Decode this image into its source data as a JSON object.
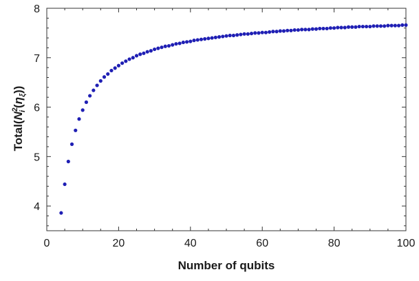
{
  "chart_data": {
    "type": "scatter",
    "title": "",
    "xlabel": "Number of qubits",
    "ylabel": {
      "prefix": "Total",
      "open": "(",
      "symbol": "N",
      "superscript": "2",
      "subscript": "i",
      "inner_open": "(",
      "eta": "η",
      "eta_subscript": "ξ",
      "inner_close": ")",
      "close": ")"
    },
    "xlim": [
      0,
      100
    ],
    "ylim": [
      3.5,
      8.0
    ],
    "xticks": [
      0,
      20,
      40,
      60,
      80,
      100
    ],
    "xtick_labels": [
      "0",
      "20",
      "40",
      "60",
      "80",
      "100"
    ],
    "yticks": [
      4,
      5,
      6,
      7,
      8
    ],
    "ytick_labels": [
      "4",
      "5",
      "6",
      "7",
      "8"
    ],
    "grid": false,
    "marker_color": "#1f1fb4",
    "series": [
      {
        "x": [
          4,
          5,
          6,
          7,
          8,
          9,
          10,
          11,
          12,
          13,
          14,
          15,
          16,
          17,
          18,
          19,
          20,
          21,
          22,
          23,
          24,
          25,
          26,
          27,
          28,
          29,
          30,
          31,
          32,
          33,
          34,
          35,
          36,
          37,
          38,
          39,
          40,
          41,
          42,
          43,
          44,
          45,
          46,
          47,
          48,
          49,
          50,
          51,
          52,
          53,
          54,
          55,
          56,
          57,
          58,
          59,
          60,
          61,
          62,
          63,
          64,
          65,
          66,
          67,
          68,
          69,
          70,
          71,
          72,
          73,
          74,
          75,
          76,
          77,
          78,
          79,
          80,
          81,
          82,
          83,
          84,
          85,
          86,
          87,
          88,
          89,
          90,
          91,
          92,
          93,
          94,
          95,
          96,
          97,
          98,
          99,
          100
        ],
        "y": [
          3.86,
          4.44,
          4.9,
          5.25,
          5.53,
          5.76,
          5.94,
          6.1,
          6.23,
          6.34,
          6.44,
          6.53,
          6.61,
          6.67,
          6.74,
          6.79,
          6.84,
          6.89,
          6.93,
          6.97,
          7.0,
          7.04,
          7.07,
          7.09,
          7.12,
          7.14,
          7.17,
          7.19,
          7.21,
          7.23,
          7.24,
          7.26,
          7.28,
          7.29,
          7.31,
          7.32,
          7.33,
          7.35,
          7.36,
          7.37,
          7.38,
          7.39,
          7.4,
          7.41,
          7.42,
          7.43,
          7.44,
          7.45,
          7.45,
          7.46,
          7.47,
          7.48,
          7.48,
          7.49,
          7.5,
          7.5,
          7.51,
          7.51,
          7.52,
          7.53,
          7.53,
          7.54,
          7.54,
          7.55,
          7.55,
          7.56,
          7.56,
          7.57,
          7.57,
          7.57,
          7.58,
          7.58,
          7.59,
          7.59,
          7.59,
          7.6,
          7.6,
          7.61,
          7.61,
          7.61,
          7.62,
          7.62,
          7.62,
          7.63,
          7.63,
          7.63,
          7.63,
          7.64,
          7.64,
          7.64,
          7.64,
          7.65,
          7.65,
          7.65,
          7.65,
          7.66,
          7.66
        ]
      }
    ]
  }
}
